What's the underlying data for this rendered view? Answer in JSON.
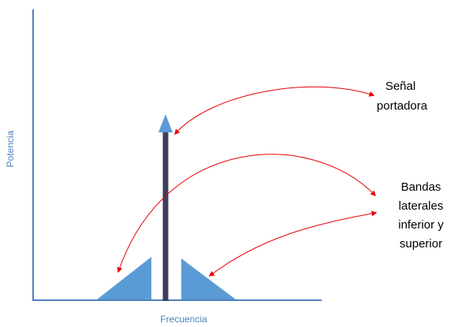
{
  "axes": {
    "x_label": "Frecuencia",
    "y_label": "Potencia"
  },
  "annotations": {
    "carrier": {
      "line1": "Señal",
      "line2": "portadora"
    },
    "sidebands": {
      "line1": "Bandas",
      "line2": "laterales",
      "line3": "inferior y",
      "line4": "superior"
    }
  },
  "colors": {
    "axis": "#4f81bd",
    "carrier_bar": "#3f3d5c",
    "carrier_arrow": "#5b9bd5",
    "sideband": "#5b9bd5",
    "pointer_arrow": "#e8000b",
    "annotation_text": "#000000"
  }
}
